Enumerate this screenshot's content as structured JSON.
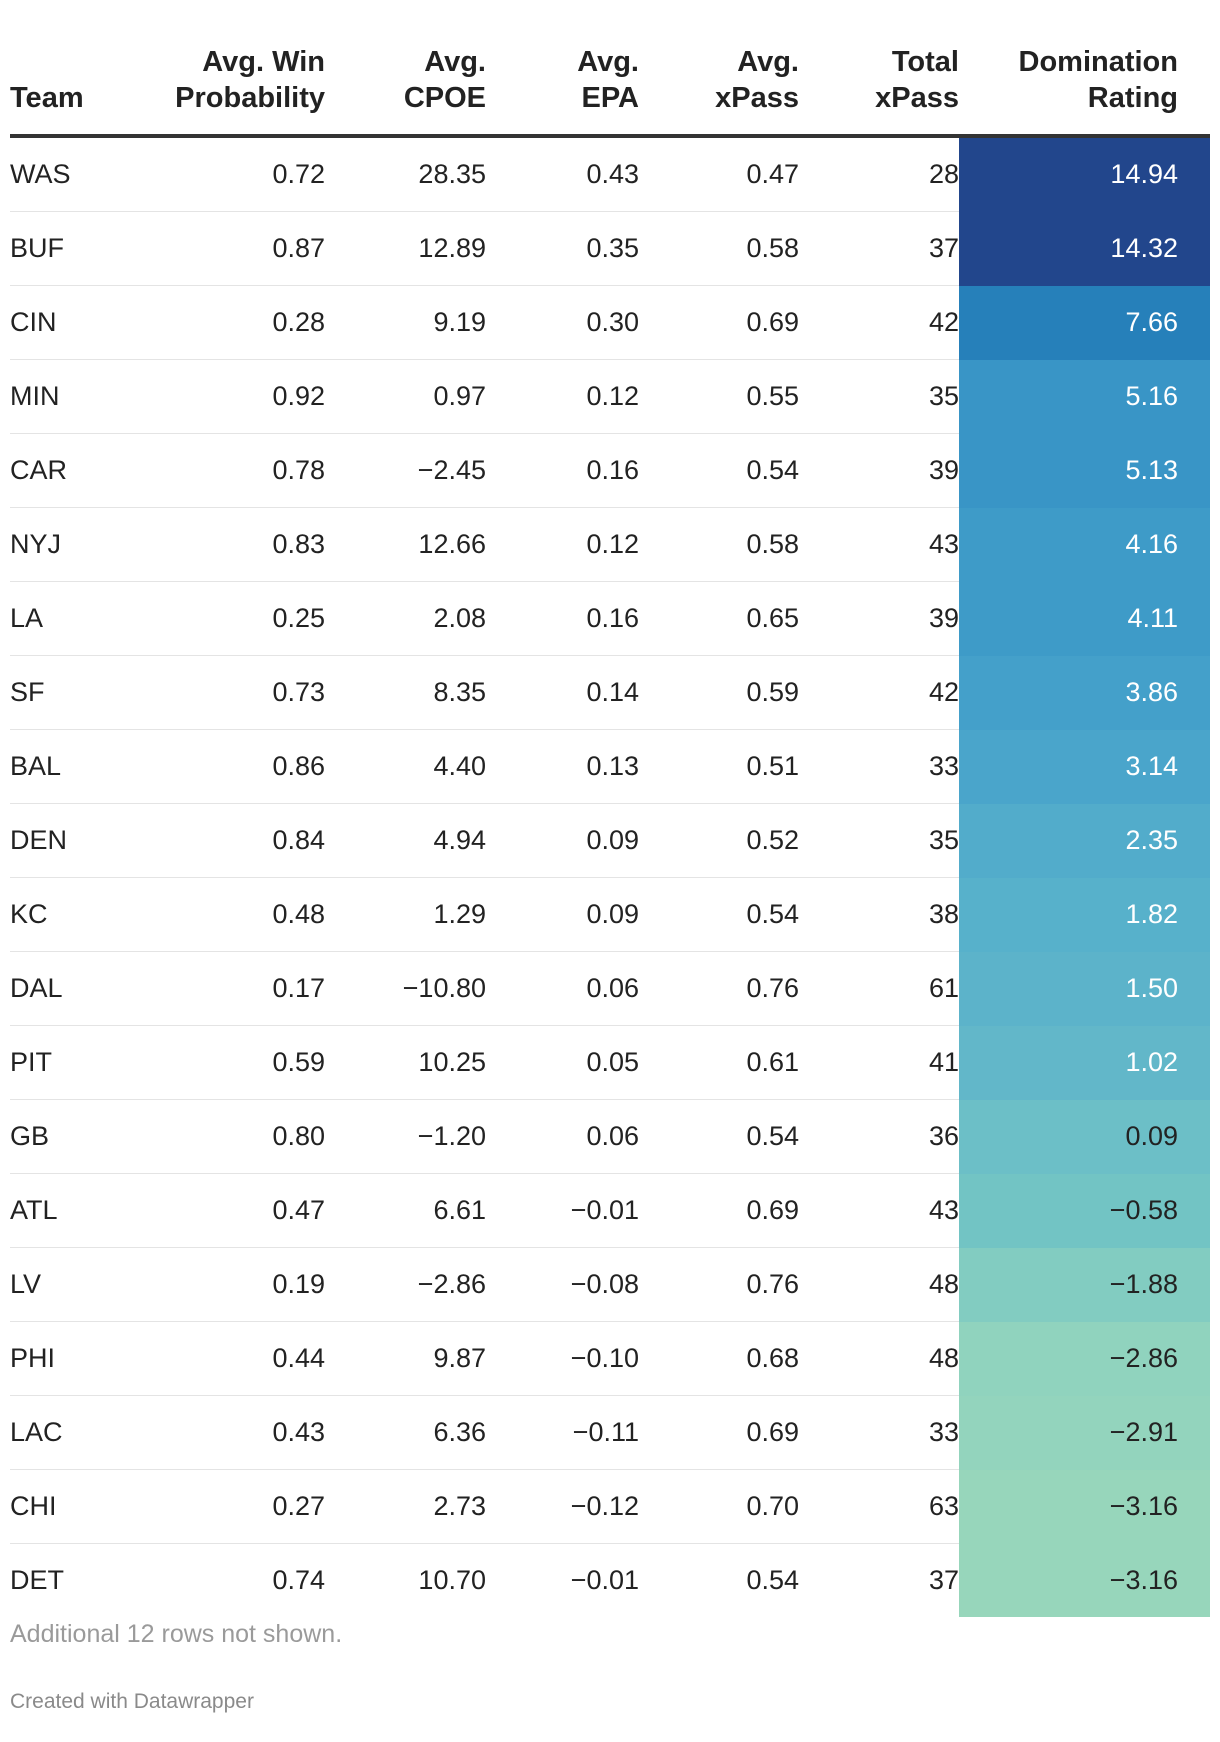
{
  "chart_data": {
    "type": "table",
    "columns": [
      "Team",
      "Avg. Win Probability",
      "Avg. CPOE",
      "Avg. EPA",
      "Avg. xPass",
      "Total xPass",
      "Domination Rating"
    ],
    "header_lines": [
      [
        "",
        "Team"
      ],
      [
        "Avg. Win",
        "Probability"
      ],
      [
        "Avg.",
        "CPOE"
      ],
      [
        "Avg.",
        "EPA"
      ],
      [
        "Avg.",
        "xPass"
      ],
      [
        "Total",
        "xPass"
      ],
      [
        "Domination",
        "Rating"
      ]
    ],
    "rows": [
      [
        "WAS",
        "0.72",
        "28.35",
        "0.43",
        "0.47",
        "28",
        "14.94"
      ],
      [
        "BUF",
        "0.87",
        "12.89",
        "0.35",
        "0.58",
        "37",
        "14.32"
      ],
      [
        "CIN",
        "0.28",
        "9.19",
        "0.30",
        "0.69",
        "42",
        "7.66"
      ],
      [
        "MIN",
        "0.92",
        "0.97",
        "0.12",
        "0.55",
        "35",
        "5.16"
      ],
      [
        "CAR",
        "0.78",
        "−2.45",
        "0.16",
        "0.54",
        "39",
        "5.13"
      ],
      [
        "NYJ",
        "0.83",
        "12.66",
        "0.12",
        "0.58",
        "43",
        "4.16"
      ],
      [
        "LA",
        "0.25",
        "2.08",
        "0.16",
        "0.65",
        "39",
        "4.11"
      ],
      [
        "SF",
        "0.73",
        "8.35",
        "0.14",
        "0.59",
        "42",
        "3.86"
      ],
      [
        "BAL",
        "0.86",
        "4.40",
        "0.13",
        "0.51",
        "33",
        "3.14"
      ],
      [
        "DEN",
        "0.84",
        "4.94",
        "0.09",
        "0.52",
        "35",
        "2.35"
      ],
      [
        "KC",
        "0.48",
        "1.29",
        "0.09",
        "0.54",
        "38",
        "1.82"
      ],
      [
        "DAL",
        "0.17",
        "−10.80",
        "0.06",
        "0.76",
        "61",
        "1.50"
      ],
      [
        "PIT",
        "0.59",
        "10.25",
        "0.05",
        "0.61",
        "41",
        "1.02"
      ],
      [
        "GB",
        "0.80",
        "−1.20",
        "0.06",
        "0.54",
        "36",
        "0.09"
      ],
      [
        "ATL",
        "0.47",
        "6.61",
        "−0.01",
        "0.69",
        "43",
        "−0.58"
      ],
      [
        "LV",
        "0.19",
        "−2.86",
        "−0.08",
        "0.76",
        "48",
        "−1.88"
      ],
      [
        "PHI",
        "0.44",
        "9.87",
        "−0.10",
        "0.68",
        "48",
        "−2.86"
      ],
      [
        "LAC",
        "0.43",
        "6.36",
        "−0.11",
        "0.69",
        "33",
        "−2.91"
      ],
      [
        "CHI",
        "0.27",
        "2.73",
        "−0.12",
        "0.70",
        "63",
        "−3.16"
      ],
      [
        "DET",
        "0.74",
        "10.70",
        "−0.01",
        "0.54",
        "37",
        "−3.16"
      ]
    ],
    "heatmap_column": "Domination Rating",
    "heatmap_colors": [
      {
        "bg": "#22468c",
        "fg": "#ffffff"
      },
      {
        "bg": "#22468c",
        "fg": "#ffffff"
      },
      {
        "bg": "#2680ba",
        "fg": "#ffffff"
      },
      {
        "bg": "#3995c6",
        "fg": "#ffffff"
      },
      {
        "bg": "#3995c6",
        "fg": "#ffffff"
      },
      {
        "bg": "#3e9bc8",
        "fg": "#ffffff"
      },
      {
        "bg": "#3e9bc8",
        "fg": "#ffffff"
      },
      {
        "bg": "#44a0ca",
        "fg": "#ffffff"
      },
      {
        "bg": "#4aa5cb",
        "fg": "#ffffff"
      },
      {
        "bg": "#52accb",
        "fg": "#ffffff"
      },
      {
        "bg": "#57b1cb",
        "fg": "#ffffff"
      },
      {
        "bg": "#5cb3ca",
        "fg": "#ffffff"
      },
      {
        "bg": "#62b7c9",
        "fg": "#ffffff"
      },
      {
        "bg": "#6cbfc7",
        "fg": "#222222"
      },
      {
        "bg": "#72c4c4",
        "fg": "#222222"
      },
      {
        "bg": "#82ccc1",
        "fg": "#222222"
      },
      {
        "bg": "#90d3be",
        "fg": "#222222"
      },
      {
        "bg": "#93d4bd",
        "fg": "#222222"
      },
      {
        "bg": "#97d6bb",
        "fg": "#222222"
      },
      {
        "bg": "#97d6bb",
        "fg": "#222222"
      }
    ]
  },
  "footer": {
    "note": "Additional 12 rows not shown.",
    "credit": "Created with Datawrapper"
  }
}
